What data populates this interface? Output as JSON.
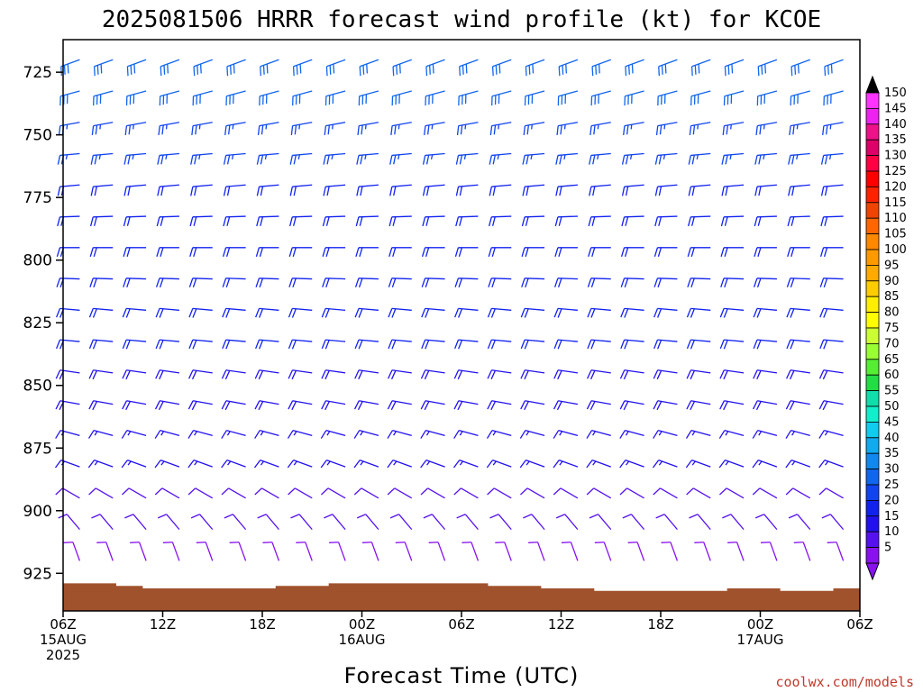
{
  "chart_data": {
    "type": "wind-barb time-height profile",
    "title": "2025081506 HRRR forecast wind profile (kt) for KCOE",
    "xlabel": "Forecast Time (UTC)",
    "ylabel": "",
    "credit": "coolwx.com/models",
    "ylim": [
      940,
      712
    ],
    "xlim_hours": [
      0,
      48
    ],
    "yticks": [
      {
        "value": 725,
        "label": "725"
      },
      {
        "value": 750,
        "label": "750"
      },
      {
        "value": 775,
        "label": "775"
      },
      {
        "value": 800,
        "label": "800"
      },
      {
        "value": 825,
        "label": "825"
      },
      {
        "value": 850,
        "label": "850"
      },
      {
        "value": 875,
        "label": "875"
      },
      {
        "value": 900,
        "label": "900"
      },
      {
        "value": 925,
        "label": "925"
      }
    ],
    "xticks": [
      {
        "hour": 0,
        "line1": "06Z",
        "line2": "15AUG",
        "line3": "2025"
      },
      {
        "hour": 6,
        "line1": "12Z",
        "line2": "",
        "line3": ""
      },
      {
        "hour": 12,
        "line1": "18Z",
        "line2": "",
        "line3": ""
      },
      {
        "hour": 18,
        "line1": "00Z",
        "line2": "16AUG",
        "line3": ""
      },
      {
        "hour": 24,
        "line1": "06Z",
        "line2": "",
        "line3": ""
      },
      {
        "hour": 30,
        "line1": "12Z",
        "line2": "",
        "line3": ""
      },
      {
        "hour": 36,
        "line1": "18Z",
        "line2": "",
        "line3": ""
      },
      {
        "hour": 42,
        "line1": "00Z",
        "line2": "17AUG",
        "line3": ""
      },
      {
        "hour": 48,
        "line1": "06Z",
        "line2": "",
        "line3": ""
      }
    ],
    "colorbar": {
      "labels": [
        "150",
        "145",
        "140",
        "135",
        "130",
        "125",
        "120",
        "115",
        "110",
        "105",
        "100",
        "95",
        "90",
        "85",
        "80",
        "75",
        "70",
        "65",
        "60",
        "55",
        "50",
        "45",
        "40",
        "35",
        "30",
        "25",
        "20",
        "15",
        "10",
        "5"
      ],
      "colors": [
        "#ff33ff",
        "#ee22ee",
        "#ee1188",
        "#dd0066",
        "#ff0044",
        "#ff0000",
        "#ff2200",
        "#ee4400",
        "#ff6600",
        "#ff8800",
        "#ff9900",
        "#ffaa00",
        "#ffcc00",
        "#ffee00",
        "#ffff00",
        "#ccff33",
        "#99ff33",
        "#55ee33",
        "#22dd44",
        "#11ddaa",
        "#11eecc",
        "#11ccee",
        "#11aaee",
        "#1188ee",
        "#1166ee",
        "#1144ee",
        "#1122ee",
        "#2211ee",
        "#5511ee",
        "#8811ee"
      ],
      "top_color": "#000000",
      "bottom_color": "#8811ee"
    },
    "barb_levels": [
      720,
      732.5,
      745,
      757.5,
      770,
      782.5,
      795,
      807.5,
      820,
      832.5,
      845,
      857.5,
      870,
      882.5,
      895,
      907.5,
      920,
      932.5
    ],
    "barb_hours": [
      1,
      3,
      5,
      7,
      9,
      11,
      13,
      15,
      17,
      19,
      21,
      23,
      25,
      27,
      29,
      31,
      33,
      35,
      37,
      39,
      41,
      43,
      45,
      47
    ],
    "wind_direction_rows_deg": [
      250,
      255,
      260,
      265,
      265,
      268,
      270,
      272,
      275,
      275,
      278,
      280,
      285,
      290,
      300,
      320,
      340,
      350
    ],
    "wind_speed_rows_kt": [
      32,
      30,
      27,
      25,
      22,
      21,
      20,
      20,
      20,
      20,
      19,
      18,
      17,
      15,
      12,
      10,
      8,
      7
    ],
    "terrain_surface_hpa": [
      929,
      929,
      930,
      931,
      931,
      931,
      931,
      931,
      930,
      930,
      929,
      929,
      929,
      929,
      929,
      929,
      930,
      930,
      931,
      931,
      932,
      932,
      932,
      932,
      932,
      931,
      931,
      932,
      932,
      931
    ],
    "terrain_color": "#a0522d"
  }
}
